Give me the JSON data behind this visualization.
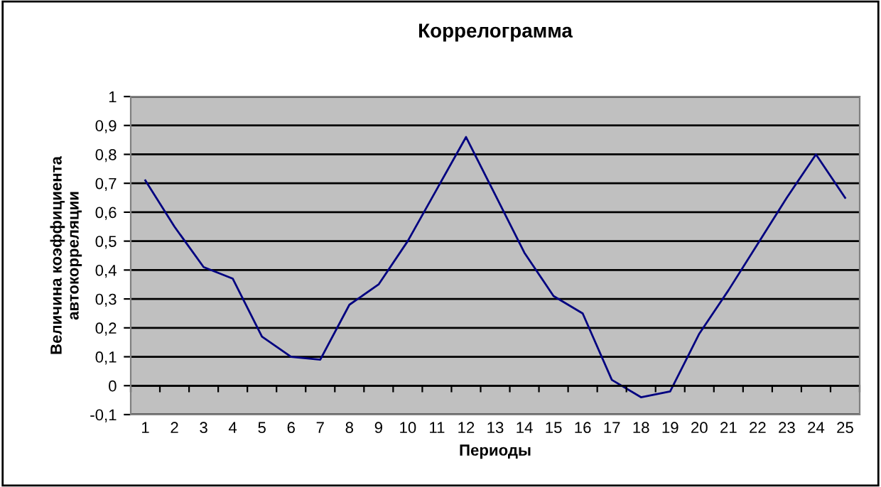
{
  "chart_data": {
    "type": "line",
    "title": "Коррелограмма",
    "xlabel": "Периоды",
    "ylabel": "Величина коэффициента\nавтокорреляции",
    "categories": [
      "1",
      "2",
      "3",
      "4",
      "5",
      "6",
      "7",
      "8",
      "9",
      "10",
      "11",
      "12",
      "13",
      "14",
      "15",
      "16",
      "17",
      "18",
      "19",
      "20",
      "21",
      "22",
      "23",
      "24",
      "25"
    ],
    "series": [
      {
        "color": "#000080",
        "values": [
          0.71,
          0.55,
          0.41,
          0.37,
          0.17,
          0.1,
          0.09,
          0.28,
          0.35,
          0.5,
          0.68,
          0.86,
          0.66,
          0.46,
          0.31,
          0.25,
          0.02,
          -0.04,
          -0.02,
          0.18,
          0.33,
          0.49,
          0.65,
          0.8,
          0.65
        ]
      }
    ],
    "ylim": [
      -0.1,
      1
    ],
    "yticks": [
      {
        "value": -0.1,
        "label": "-0,1"
      },
      0,
      {
        "value": 0.1,
        "label": "0,1"
      },
      {
        "value": 0.2,
        "label": "0,2"
      },
      {
        "value": 0.3,
        "label": "0,3"
      },
      {
        "value": 0.4,
        "label": "0,4"
      },
      {
        "value": 0.5,
        "label": "0,5"
      },
      {
        "value": 0.6,
        "label": "0,6"
      },
      {
        "value": 0.7,
        "label": "0,7"
      },
      {
        "value": 0.8,
        "label": "0,8"
      },
      {
        "value": 0.9,
        "label": "0,9"
      },
      1
    ],
    "grid": "y",
    "marker": "none",
    "line_style": "solid"
  }
}
